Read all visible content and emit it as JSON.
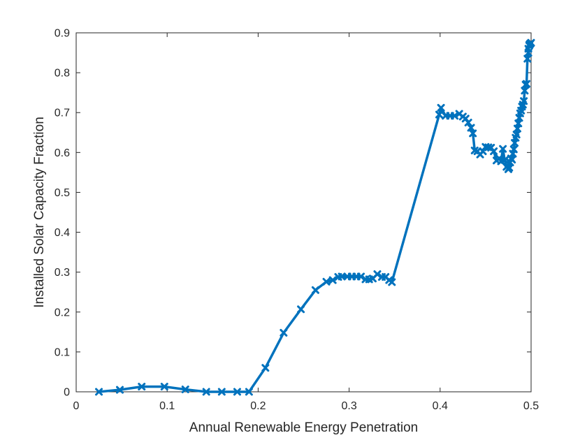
{
  "chart_data": {
    "type": "line",
    "title": "",
    "xlabel": "Annual Renewable Energy Penetration",
    "ylabel": "Installed Solar Capacity Fraction",
    "xlim": [
      0,
      0.5
    ],
    "ylim": [
      0,
      0.9
    ],
    "xticks": [
      0,
      0.1,
      0.2,
      0.3,
      0.4,
      0.5
    ],
    "xtick_labels": [
      "0",
      "0.1",
      "0.2",
      "0.3",
      "0.4",
      "0.5"
    ],
    "yticks": [
      0,
      0.1,
      0.2,
      0.3,
      0.4,
      0.5,
      0.6,
      0.7,
      0.8,
      0.9
    ],
    "ytick_labels": [
      "0",
      "0.1",
      "0.2",
      "0.3",
      "0.4",
      "0.5",
      "0.6",
      "0.7",
      "0.8",
      "0.9"
    ],
    "grid": false,
    "marker": "x",
    "color": "#0072BD",
    "series": [
      {
        "x": [
          0.025,
          0.048,
          0.072,
          0.097,
          0.12,
          0.143,
          0.16,
          0.177,
          0.19,
          0.208,
          0.228,
          0.247,
          0.263,
          0.275,
          0.282,
          0.288,
          0.292,
          0.298,
          0.303,
          0.308,
          0.313,
          0.318,
          0.322,
          0.326,
          0.331,
          0.336,
          0.34,
          0.344,
          0.347,
          0.399,
          0.401,
          0.406,
          0.411,
          0.416,
          0.421,
          0.425,
          0.428,
          0.431,
          0.434,
          0.436,
          0.438,
          0.441,
          0.444,
          0.447,
          0.45,
          0.453,
          0.456,
          0.459,
          0.462,
          0.465,
          0.467,
          0.469,
          0.471,
          0.473,
          0.475,
          0.476,
          0.477,
          0.478,
          0.479,
          0.48,
          0.481,
          0.482,
          0.483,
          0.484,
          0.485,
          0.486,
          0.487,
          0.488,
          0.489,
          0.49,
          0.491,
          0.492,
          0.493,
          0.494,
          0.495,
          0.496,
          0.497,
          0.497,
          0.498,
          0.498,
          0.499,
          0.499,
          0.5
        ],
        "y": [
          0.0,
          0.005,
          0.013,
          0.013,
          0.006,
          0.0,
          0.0,
          0.0,
          0.0,
          0.06,
          0.148,
          0.207,
          0.255,
          0.276,
          0.28,
          0.288,
          0.289,
          0.289,
          0.289,
          0.289,
          0.289,
          0.282,
          0.282,
          0.284,
          0.295,
          0.288,
          0.288,
          0.28,
          0.275,
          0.695,
          0.712,
          0.692,
          0.692,
          0.692,
          0.697,
          0.69,
          0.685,
          0.675,
          0.662,
          0.648,
          0.605,
          0.603,
          0.595,
          0.603,
          0.614,
          0.613,
          0.612,
          0.603,
          0.58,
          0.585,
          0.578,
          0.609,
          0.581,
          0.564,
          0.558,
          0.562,
          0.575,
          0.585,
          0.582,
          0.597,
          0.608,
          0.624,
          0.637,
          0.645,
          0.66,
          0.673,
          0.687,
          0.698,
          0.705,
          0.715,
          0.72,
          0.729,
          0.755,
          0.77,
          0.772,
          0.835,
          0.85,
          0.86,
          0.868,
          0.87,
          0.872,
          0.873,
          0.875
        ]
      }
    ]
  }
}
